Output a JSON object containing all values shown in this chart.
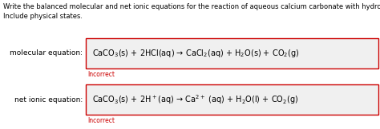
{
  "bg_color": "#ffffff",
  "header_text_line1": "Write the balanced molecular and net ionic equations for the reaction of aqueous calcium carbonate with hydrochloric acid.",
  "header_text_line2": "Include physical states.",
  "mol_label": "molecular equation:",
  "mol_equation": "CaCO$_3$(s) + 2HCl(aq) → CaCl$_2$(aq) + H$_2$O(s) + CO$_2$(g)",
  "mol_incorrect": "Incorrect",
  "net_label": "net ionic equation:",
  "net_equation": "CaCO$_3$(s) + 2H$^+$(aq) → Ca$^{2+}$ (aq) + H$_2$O(l) + CO$_2$(g)",
  "net_incorrect": "Incorrect",
  "box_edge_color": "#cc0000",
  "box_face_color": "#f0f0f0",
  "incorrect_color": "#cc0000",
  "header_fontsize": 6.0,
  "label_fontsize": 6.5,
  "eq_fontsize": 7.0,
  "incorrect_fontsize": 5.5,
  "fig_width": 4.74,
  "fig_height": 1.62,
  "dpi": 100
}
